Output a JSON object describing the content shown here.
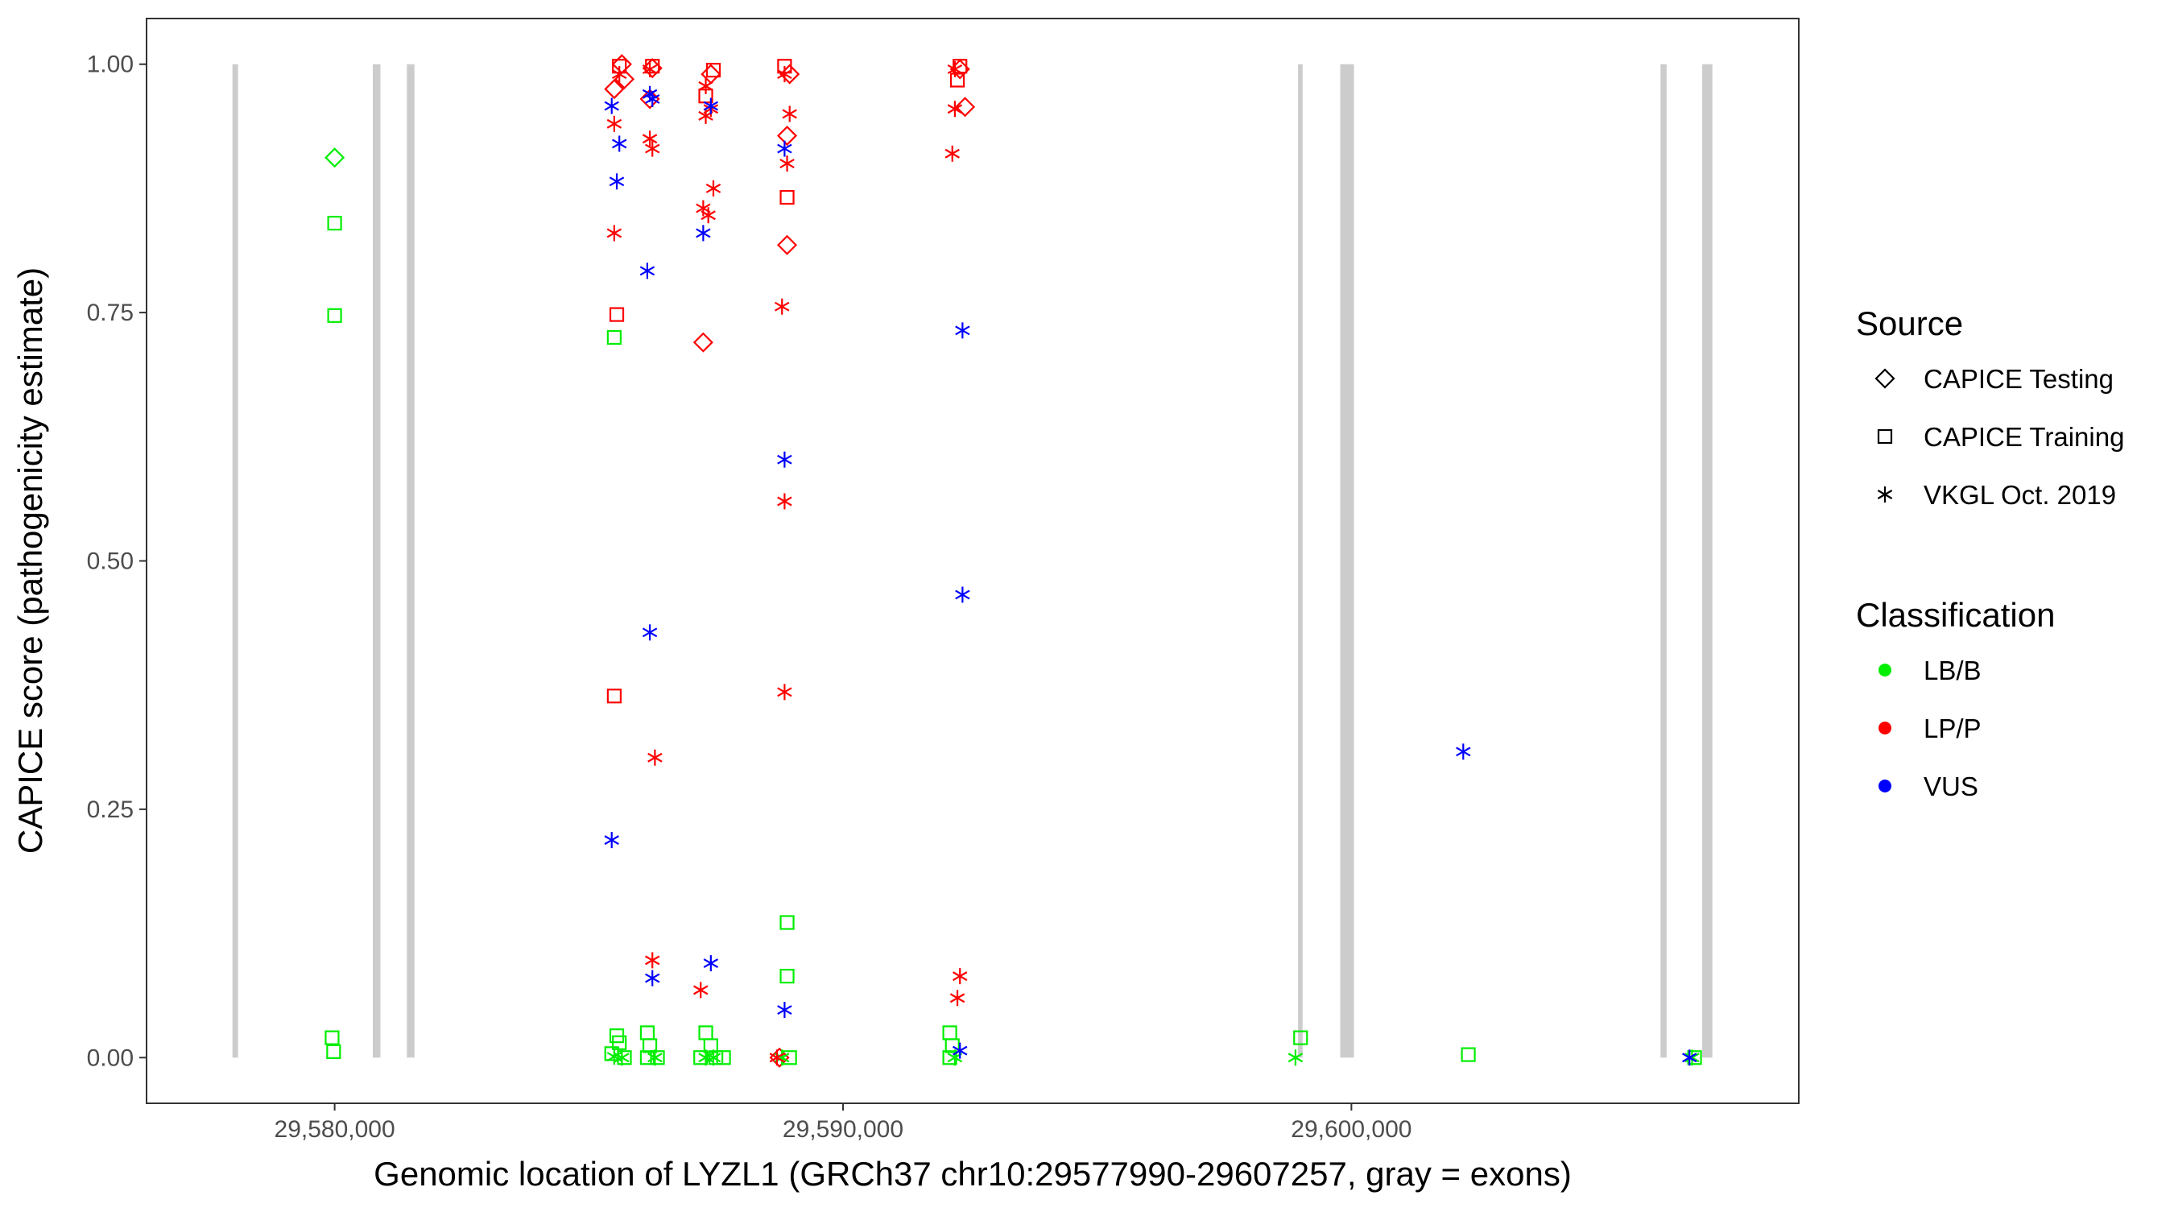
{
  "chart_data": {
    "type": "scatter",
    "title": "",
    "xlabel": "Genomic location of LYZL1 (GRCh37 chr10:29577990-29607257, gray = exons)",
    "ylabel": "CAPICE score (pathogenicity estimate)",
    "xlim": [
      29576300,
      29608800
    ],
    "ylim": [
      -0.046,
      1.046
    ],
    "x_ticks": [
      {
        "value": 29580000,
        "label": "29,580,000"
      },
      {
        "value": 29590000,
        "label": "29,590,000"
      },
      {
        "value": 29600000,
        "label": "29,600,000"
      }
    ],
    "y_ticks": [
      {
        "value": 0.0,
        "label": "0.00"
      },
      {
        "value": 0.25,
        "label": "0.25"
      },
      {
        "value": 0.5,
        "label": "0.50"
      },
      {
        "value": 0.75,
        "label": "0.75"
      },
      {
        "value": 1.0,
        "label": "1.00"
      }
    ],
    "grid": false,
    "legend_position": "right",
    "colors": {
      "LB/B": "#00ee00",
      "LP/P": "#ff0000",
      "VUS": "#0000ff",
      "exon": "#cccccc"
    },
    "exons": [
      {
        "start": 29577990,
        "end": 29578100
      },
      {
        "start": 29580750,
        "end": 29580900
      },
      {
        "start": 29581420,
        "end": 29581570
      },
      {
        "start": 29598950,
        "end": 29599040
      },
      {
        "start": 29599780,
        "end": 29600050
      },
      {
        "start": 29606080,
        "end": 29606200
      },
      {
        "start": 29606900,
        "end": 29607100
      }
    ],
    "legends": [
      {
        "title": "Source",
        "items": [
          {
            "label": "CAPICE Testing",
            "shape": "diamond"
          },
          {
            "label": "CAPICE Training",
            "shape": "square"
          },
          {
            "label": "VKGL Oct. 2019",
            "shape": "asterisk"
          }
        ]
      },
      {
        "title": "Classification",
        "items": [
          {
            "label": "LB/B",
            "color": "#00ee00"
          },
          {
            "label": "LP/P",
            "color": "#ff0000"
          },
          {
            "label": "VUS",
            "color": "#0000ff"
          }
        ]
      }
    ],
    "series": [
      {
        "source": "CAPICE Testing",
        "shape": "diamond",
        "points": [
          {
            "x": 29580000,
            "y": 0.906,
            "class": "LB/B"
          },
          {
            "x": 29585500,
            "y": 0.975,
            "class": "LP/P"
          },
          {
            "x": 29585650,
            "y": 1.0,
            "class": "LP/P"
          },
          {
            "x": 29585700,
            "y": 0.985,
            "class": "LP/P"
          },
          {
            "x": 29586250,
            "y": 0.996,
            "class": "LP/P"
          },
          {
            "x": 29586200,
            "y": 0.965,
            "class": "LP/P"
          },
          {
            "x": 29587250,
            "y": 0.72,
            "class": "LP/P"
          },
          {
            "x": 29587400,
            "y": 0.99,
            "class": "LP/P"
          },
          {
            "x": 29588900,
            "y": 0.818,
            "class": "LP/P"
          },
          {
            "x": 29588900,
            "y": 0.928,
            "class": "LP/P"
          },
          {
            "x": 29588750,
            "y": 0.0,
            "class": "LP/P"
          },
          {
            "x": 29588950,
            "y": 0.99,
            "class": "LP/P"
          },
          {
            "x": 29592300,
            "y": 0.995,
            "class": "LP/P"
          },
          {
            "x": 29592400,
            "y": 0.957,
            "class": "LP/P"
          }
        ]
      },
      {
        "source": "CAPICE Training",
        "shape": "square",
        "points": [
          {
            "x": 29580000,
            "y": 0.84,
            "class": "LB/B"
          },
          {
            "x": 29580000,
            "y": 0.747,
            "class": "LB/B"
          },
          {
            "x": 29579950,
            "y": 0.02,
            "class": "LB/B"
          },
          {
            "x": 29579980,
            "y": 0.006,
            "class": "LB/B"
          },
          {
            "x": 29585500,
            "y": 0.725,
            "class": "LB/B"
          },
          {
            "x": 29585550,
            "y": 0.022,
            "class": "LB/B"
          },
          {
            "x": 29585600,
            "y": 0.015,
            "class": "LB/B"
          },
          {
            "x": 29585450,
            "y": 0.004,
            "class": "LB/B"
          },
          {
            "x": 29585700,
            "y": 0.0,
            "class": "LB/B"
          },
          {
            "x": 29586150,
            "y": 0.025,
            "class": "LB/B"
          },
          {
            "x": 29586200,
            "y": 0.012,
            "class": "LB/B"
          },
          {
            "x": 29586150,
            "y": 0.0,
            "class": "LB/B"
          },
          {
            "x": 29586350,
            "y": 0.0,
            "class": "LB/B"
          },
          {
            "x": 29587300,
            "y": 0.025,
            "class": "LB/B"
          },
          {
            "x": 29587400,
            "y": 0.012,
            "class": "LB/B"
          },
          {
            "x": 29587200,
            "y": 0.0,
            "class": "LB/B"
          },
          {
            "x": 29587500,
            "y": 0.0,
            "class": "LB/B"
          },
          {
            "x": 29587650,
            "y": 0.0,
            "class": "LB/B"
          },
          {
            "x": 29588900,
            "y": 0.136,
            "class": "LB/B"
          },
          {
            "x": 29588900,
            "y": 0.082,
            "class": "LB/B"
          },
          {
            "x": 29588950,
            "y": 0.0,
            "class": "LB/B"
          },
          {
            "x": 29592100,
            "y": 0.025,
            "class": "LB/B"
          },
          {
            "x": 29592150,
            "y": 0.012,
            "class": "LB/B"
          },
          {
            "x": 29592100,
            "y": 0.0,
            "class": "LB/B"
          },
          {
            "x": 29599000,
            "y": 0.02,
            "class": "LB/B"
          },
          {
            "x": 29602300,
            "y": 0.003,
            "class": "LB/B"
          },
          {
            "x": 29606750,
            "y": 0.0,
            "class": "LB/B"
          },
          {
            "x": 29585550,
            "y": 0.748,
            "class": "LP/P"
          },
          {
            "x": 29585500,
            "y": 0.364,
            "class": "LP/P"
          },
          {
            "x": 29585600,
            "y": 0.998,
            "class": "LP/P"
          },
          {
            "x": 29586250,
            "y": 0.998,
            "class": "LP/P"
          },
          {
            "x": 29587300,
            "y": 0.968,
            "class": "LP/P"
          },
          {
            "x": 29587450,
            "y": 0.994,
            "class": "LP/P"
          },
          {
            "x": 29588900,
            "y": 0.866,
            "class": "LP/P"
          },
          {
            "x": 29588850,
            "y": 0.998,
            "class": "LP/P"
          },
          {
            "x": 29592300,
            "y": 0.998,
            "class": "LP/P"
          },
          {
            "x": 29592250,
            "y": 0.984,
            "class": "LP/P"
          }
        ]
      },
      {
        "source": "VKGL Oct. 2019",
        "shape": "asterisk",
        "points": [
          {
            "x": 29585500,
            "y": 0.001,
            "class": "LB/B"
          },
          {
            "x": 29585650,
            "y": 0.0,
            "class": "LB/B"
          },
          {
            "x": 29586300,
            "y": 0.0,
            "class": "LB/B"
          },
          {
            "x": 29587300,
            "y": 0.0,
            "class": "LB/B"
          },
          {
            "x": 29587450,
            "y": 0.0,
            "class": "LB/B"
          },
          {
            "x": 29588800,
            "y": 0.0,
            "class": "LB/B"
          },
          {
            "x": 29592200,
            "y": 0.0,
            "class": "LB/B"
          },
          {
            "x": 29598900,
            "y": 0.0,
            "class": "LB/B"
          },
          {
            "x": 29606700,
            "y": 0.0,
            "class": "LB/B"
          },
          {
            "x": 29585500,
            "y": 0.94,
            "class": "LP/P"
          },
          {
            "x": 29585500,
            "y": 0.83,
            "class": "LP/P"
          },
          {
            "x": 29585600,
            "y": 0.99,
            "class": "LP/P"
          },
          {
            "x": 29586200,
            "y": 0.925,
            "class": "LP/P"
          },
          {
            "x": 29586250,
            "y": 0.915,
            "class": "LP/P"
          },
          {
            "x": 29586300,
            "y": 0.302,
            "class": "LP/P"
          },
          {
            "x": 29586250,
            "y": 0.098,
            "class": "LP/P"
          },
          {
            "x": 29586200,
            "y": 0.995,
            "class": "LP/P"
          },
          {
            "x": 29587300,
            "y": 0.948,
            "class": "LP/P"
          },
          {
            "x": 29587400,
            "y": 0.955,
            "class": "LP/P"
          },
          {
            "x": 29587250,
            "y": 0.855,
            "class": "LP/P"
          },
          {
            "x": 29587350,
            "y": 0.848,
            "class": "LP/P"
          },
          {
            "x": 29587450,
            "y": 0.875,
            "class": "LP/P"
          },
          {
            "x": 29587200,
            "y": 0.068,
            "class": "LP/P"
          },
          {
            "x": 29587300,
            "y": 0.978,
            "class": "LP/P"
          },
          {
            "x": 29588800,
            "y": 0.756,
            "class": "LP/P"
          },
          {
            "x": 29588850,
            "y": 0.56,
            "class": "LP/P"
          },
          {
            "x": 29588850,
            "y": 0.368,
            "class": "LP/P"
          },
          {
            "x": 29588950,
            "y": 0.95,
            "class": "LP/P"
          },
          {
            "x": 29588900,
            "y": 0.9,
            "class": "LP/P"
          },
          {
            "x": 29588850,
            "y": 0.99,
            "class": "LP/P"
          },
          {
            "x": 29588700,
            "y": 0.0,
            "class": "LP/P"
          },
          {
            "x": 29592200,
            "y": 0.955,
            "class": "LP/P"
          },
          {
            "x": 29592150,
            "y": 0.91,
            "class": "LP/P"
          },
          {
            "x": 29592300,
            "y": 0.082,
            "class": "LP/P"
          },
          {
            "x": 29592250,
            "y": 0.06,
            "class": "LP/P"
          },
          {
            "x": 29592200,
            "y": 0.995,
            "class": "LP/P"
          },
          {
            "x": 29585450,
            "y": 0.958,
            "class": "VUS"
          },
          {
            "x": 29585600,
            "y": 0.92,
            "class": "VUS"
          },
          {
            "x": 29585550,
            "y": 0.882,
            "class": "VUS"
          },
          {
            "x": 29585450,
            "y": 0.219,
            "class": "VUS"
          },
          {
            "x": 29586200,
            "y": 0.97,
            "class": "VUS"
          },
          {
            "x": 29586250,
            "y": 0.965,
            "class": "VUS"
          },
          {
            "x": 29586150,
            "y": 0.792,
            "class": "VUS"
          },
          {
            "x": 29586200,
            "y": 0.428,
            "class": "VUS"
          },
          {
            "x": 29586250,
            "y": 0.08,
            "class": "VUS"
          },
          {
            "x": 29587400,
            "y": 0.958,
            "class": "VUS"
          },
          {
            "x": 29587250,
            "y": 0.83,
            "class": "VUS"
          },
          {
            "x": 29587400,
            "y": 0.095,
            "class": "VUS"
          },
          {
            "x": 29588850,
            "y": 0.915,
            "class": "VUS"
          },
          {
            "x": 29588850,
            "y": 0.602,
            "class": "VUS"
          },
          {
            "x": 29588850,
            "y": 0.048,
            "class": "VUS"
          },
          {
            "x": 29592350,
            "y": 0.732,
            "class": "VUS"
          },
          {
            "x": 29592350,
            "y": 0.466,
            "class": "VUS"
          },
          {
            "x": 29592300,
            "y": 0.007,
            "class": "VUS"
          },
          {
            "x": 29602200,
            "y": 0.308,
            "class": "VUS"
          },
          {
            "x": 29606650,
            "y": 0.0,
            "class": "VUS"
          }
        ]
      }
    ]
  }
}
